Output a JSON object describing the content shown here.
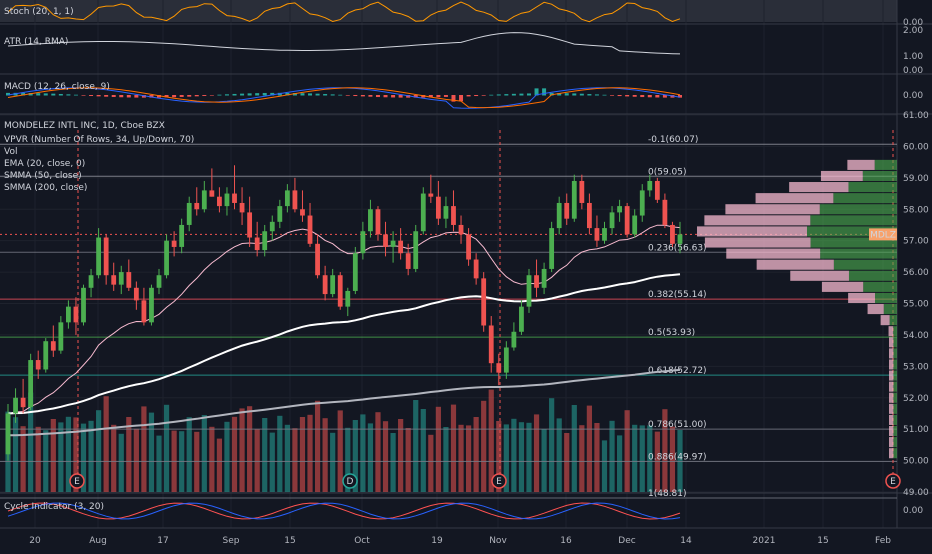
{
  "chart_data": {
    "type": "candlestick",
    "symbol_header": "MONDELEZ INTL INC, 1D, Cboe BZX",
    "ticker_tag": "MDLZ",
    "indicator_labels": [
      "VPVR (Number Of Rows, 34, Up/Down, 70)",
      "Vol",
      "EMA (20, close, 0)",
      "SMMA (50, close)",
      "SMMA (200, close)"
    ],
    "x_tick_labels": [
      "20",
      "Aug",
      "17",
      "Sep",
      "15",
      "Oct",
      "19",
      "Nov",
      "16",
      "Dec",
      "14",
      "2021",
      "15",
      "Feb"
    ],
    "price_axis_labels": [
      "61.00",
      "60.00",
      "59.00",
      "58.00",
      "57.00",
      "56.00",
      "55.00",
      "54.00",
      "53.00",
      "52.00",
      "51.00",
      "50.00",
      "49.00"
    ],
    "price_range": [
      49,
      61
    ],
    "fib_levels": [
      {
        "label": "-0.1(60.07)",
        "value": 60.07
      },
      {
        "label": "0(59.05)",
        "value": 59.05
      },
      {
        "label": "0.236(56.63)",
        "value": 56.63
      },
      {
        "label": "0.382(55.14)",
        "value": 55.14
      },
      {
        "label": "0.5(53.93)",
        "value": 53.93
      },
      {
        "label": "0.618(52.72)",
        "value": 52.72
      },
      {
        "label": "0.786(51.00)",
        "value": 51.0
      },
      {
        "label": "0.886(49.97)",
        "value": 49.97
      },
      {
        "label": "1(48.81)",
        "value": 48.81
      }
    ],
    "event_markers": [
      "E",
      "D",
      "E",
      "E"
    ],
    "panels": [
      {
        "name": "Stoch (20, 1, 1)",
        "axis_labels": [
          "0.00"
        ]
      },
      {
        "name": "ATR (14, RMA)",
        "axis_labels": [
          "2.00",
          "1.00",
          "0.00"
        ]
      },
      {
        "name": "MACD (12, 26, close, 9)",
        "axis_labels": [
          "0.00"
        ]
      },
      {
        "name": "Cycle Indicator (3, 20)",
        "axis_labels": [
          "0.00"
        ]
      }
    ],
    "candles": [
      [
        50.2,
        51.8,
        50.0,
        51.5
      ],
      [
        51.5,
        52.3,
        51.2,
        52.0
      ],
      [
        52.0,
        52.6,
        51.5,
        51.7
      ],
      [
        51.7,
        53.4,
        51.6,
        53.2
      ],
      [
        53.2,
        53.5,
        52.6,
        52.9
      ],
      [
        52.9,
        53.9,
        52.8,
        53.8
      ],
      [
        53.8,
        54.3,
        53.3,
        53.5
      ],
      [
        53.5,
        54.6,
        53.4,
        54.4
      ],
      [
        54.4,
        55.1,
        54.2,
        54.9
      ],
      [
        54.9,
        55.2,
        54.0,
        54.4
      ],
      [
        54.4,
        55.6,
        54.3,
        55.5
      ],
      [
        55.5,
        56.1,
        55.2,
        55.9
      ],
      [
        55.9,
        57.4,
        55.8,
        57.1
      ],
      [
        57.1,
        57.2,
        55.6,
        55.9
      ],
      [
        55.9,
        56.3,
        55.4,
        55.6
      ],
      [
        55.6,
        56.2,
        55.3,
        56.0
      ],
      [
        56.0,
        56.4,
        55.4,
        55.5
      ],
      [
        55.5,
        55.7,
        54.8,
        55.1
      ],
      [
        55.1,
        55.5,
        54.3,
        54.4
      ],
      [
        54.4,
        55.6,
        54.3,
        55.5
      ],
      [
        55.5,
        56.1,
        55.3,
        55.9
      ],
      [
        55.9,
        57.2,
        55.8,
        57.0
      ],
      [
        57.0,
        57.3,
        56.5,
        56.8
      ],
      [
        56.8,
        57.7,
        56.6,
        57.5
      ],
      [
        57.5,
        58.4,
        57.3,
        58.2
      ],
      [
        58.2,
        58.7,
        57.8,
        58.0
      ],
      [
        58.0,
        58.9,
        57.9,
        58.6
      ],
      [
        58.6,
        59.3,
        58.4,
        58.4
      ],
      [
        58.4,
        58.7,
        57.9,
        58.1
      ],
      [
        58.1,
        58.7,
        57.8,
        58.5
      ],
      [
        58.5,
        59.4,
        58.0,
        58.2
      ],
      [
        58.2,
        58.7,
        57.5,
        57.9
      ],
      [
        57.9,
        58.4,
        56.8,
        57.1
      ],
      [
        57.1,
        57.6,
        56.5,
        56.7
      ],
      [
        56.7,
        57.5,
        56.5,
        57.3
      ],
      [
        57.3,
        57.8,
        57.0,
        57.6
      ],
      [
        57.6,
        58.3,
        57.4,
        58.1
      ],
      [
        58.1,
        58.8,
        57.9,
        58.6
      ],
      [
        58.6,
        59.0,
        57.9,
        58.0
      ],
      [
        58.0,
        58.6,
        57.6,
        57.8
      ],
      [
        57.8,
        58.2,
        56.8,
        56.9
      ],
      [
        56.9,
        57.2,
        55.8,
        55.9
      ],
      [
        55.9,
        56.2,
        55.1,
        55.3
      ],
      [
        55.3,
        56.1,
        55.2,
        55.9
      ],
      [
        55.9,
        56.0,
        54.8,
        54.9
      ],
      [
        54.9,
        55.5,
        54.6,
        55.4
      ],
      [
        55.4,
        56.8,
        55.3,
        56.6
      ],
      [
        56.6,
        57.6,
        56.4,
        57.3
      ],
      [
        57.3,
        58.3,
        57.1,
        58.0
      ],
      [
        58.0,
        58.1,
        57.0,
        57.2
      ],
      [
        57.2,
        57.6,
        56.5,
        56.8
      ],
      [
        56.8,
        57.3,
        56.3,
        57.0
      ],
      [
        57.0,
        57.4,
        56.4,
        56.6
      ],
      [
        56.6,
        56.9,
        55.9,
        56.1
      ],
      [
        56.1,
        57.5,
        56.0,
        57.3
      ],
      [
        57.3,
        58.7,
        57.2,
        58.5
      ],
      [
        58.5,
        59.1,
        58.2,
        58.4
      ],
      [
        58.4,
        58.9,
        57.5,
        57.7
      ],
      [
        57.7,
        58.4,
        57.4,
        58.1
      ],
      [
        58.1,
        58.6,
        57.3,
        57.5
      ],
      [
        57.5,
        57.8,
        56.9,
        57.2
      ],
      [
        57.2,
        57.4,
        56.2,
        56.4
      ],
      [
        56.4,
        56.6,
        55.6,
        55.8
      ],
      [
        55.8,
        56.0,
        54.1,
        54.3
      ],
      [
        54.3,
        54.6,
        52.8,
        53.1
      ],
      [
        53.1,
        53.4,
        52.4,
        52.8
      ],
      [
        52.8,
        53.8,
        52.6,
        53.6
      ],
      [
        53.6,
        54.4,
        53.5,
        54.1
      ],
      [
        54.1,
        55.1,
        54.0,
        54.9
      ],
      [
        54.9,
        56.1,
        54.7,
        55.9
      ],
      [
        55.9,
        56.4,
        55.2,
        55.5
      ],
      [
        55.5,
        56.3,
        55.3,
        56.1
      ],
      [
        56.1,
        57.6,
        56.0,
        57.4
      ],
      [
        57.4,
        58.4,
        57.2,
        58.2
      ],
      [
        58.2,
        58.5,
        57.5,
        57.7
      ],
      [
        57.7,
        59.1,
        57.6,
        58.9
      ],
      [
        58.9,
        59.1,
        58.0,
        58.2
      ],
      [
        58.2,
        58.5,
        57.2,
        57.4
      ],
      [
        57.4,
        57.8,
        56.8,
        57.0
      ],
      [
        57.0,
        57.6,
        56.9,
        57.4
      ],
      [
        57.4,
        58.1,
        57.2,
        57.9
      ],
      [
        57.9,
        58.3,
        57.6,
        58.1
      ],
      [
        58.1,
        58.2,
        57.1,
        57.2
      ],
      [
        57.2,
        58.0,
        57.1,
        57.8
      ],
      [
        57.8,
        58.8,
        57.6,
        58.6
      ],
      [
        58.6,
        59.1,
        58.4,
        58.9
      ],
      [
        58.9,
        59.0,
        58.2,
        58.3
      ],
      [
        58.3,
        58.5,
        57.4,
        57.5
      ],
      [
        57.5,
        57.6,
        56.8,
        56.9
      ],
      [
        56.9,
        57.6,
        56.6,
        57.2
      ]
    ]
  }
}
